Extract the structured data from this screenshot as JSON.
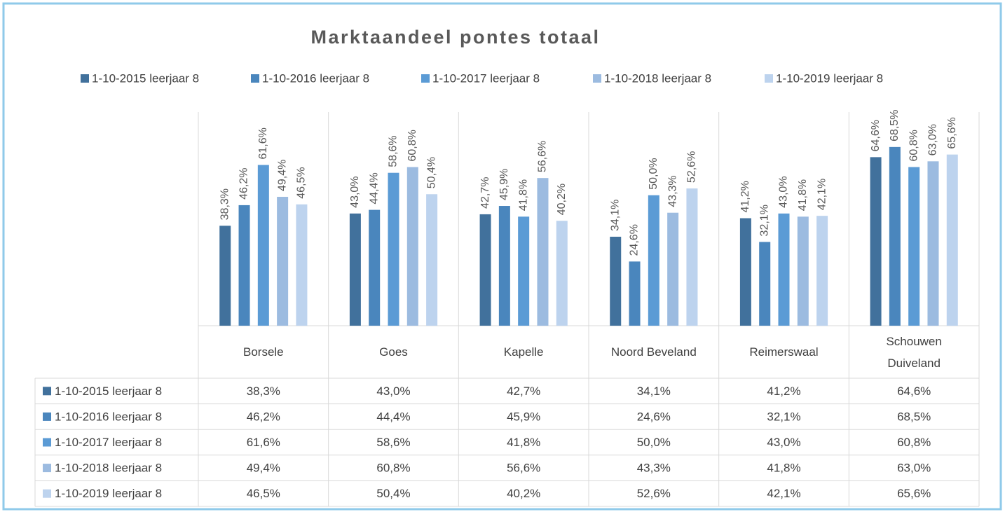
{
  "chart_data": {
    "type": "bar",
    "title": "Marktaandeel pontes totaal",
    "categories": [
      "Borsele",
      "Goes",
      "Kapelle",
      "Noord Beveland",
      "Reimerswaal",
      "Schouwen Duiveland"
    ],
    "series": [
      {
        "name": "1-10-2015 leerjaar 8",
        "color": "#41719c",
        "values": [
          38.3,
          43.0,
          42.7,
          34.1,
          41.2,
          64.6
        ],
        "value_labels": [
          "38,3%",
          "43,0%",
          "42,7%",
          "34,1%",
          "41,2%",
          "64,6%"
        ]
      },
      {
        "name": "1-10-2016 leerjaar 8",
        "color": "#4a86bd",
        "values": [
          46.2,
          44.4,
          45.9,
          24.6,
          32.1,
          68.5
        ],
        "value_labels": [
          "46,2%",
          "44,4%",
          "45,9%",
          "24,6%",
          "32,1%",
          "68,5%"
        ]
      },
      {
        "name": "1-10-2017 leerjaar 8",
        "color": "#5b9bd5",
        "values": [
          61.6,
          58.6,
          41.8,
          50.0,
          43.0,
          60.8
        ],
        "value_labels": [
          "61,6%",
          "58,6%",
          "41,8%",
          "50,0%",
          "43,0%",
          "60,8%"
        ]
      },
      {
        "name": "1-10-2018 leerjaar 8",
        "color": "#9cbbe0",
        "values": [
          49.4,
          60.8,
          56.6,
          43.3,
          41.8,
          63.0
        ],
        "value_labels": [
          "49,4%",
          "60,8%",
          "56,6%",
          "43,3%",
          "41,8%",
          "63,0%"
        ]
      },
      {
        "name": "1-10-2019 leerjaar 8",
        "color": "#bdd3ee",
        "values": [
          46.5,
          50.4,
          40.2,
          52.6,
          42.1,
          65.6
        ],
        "value_labels": [
          "46,5%",
          "50,4%",
          "40,2%",
          "52,6%",
          "42,1%",
          "65,6%"
        ]
      }
    ],
    "ylim": [
      0,
      80
    ],
    "legend": "top",
    "data_table": true
  }
}
